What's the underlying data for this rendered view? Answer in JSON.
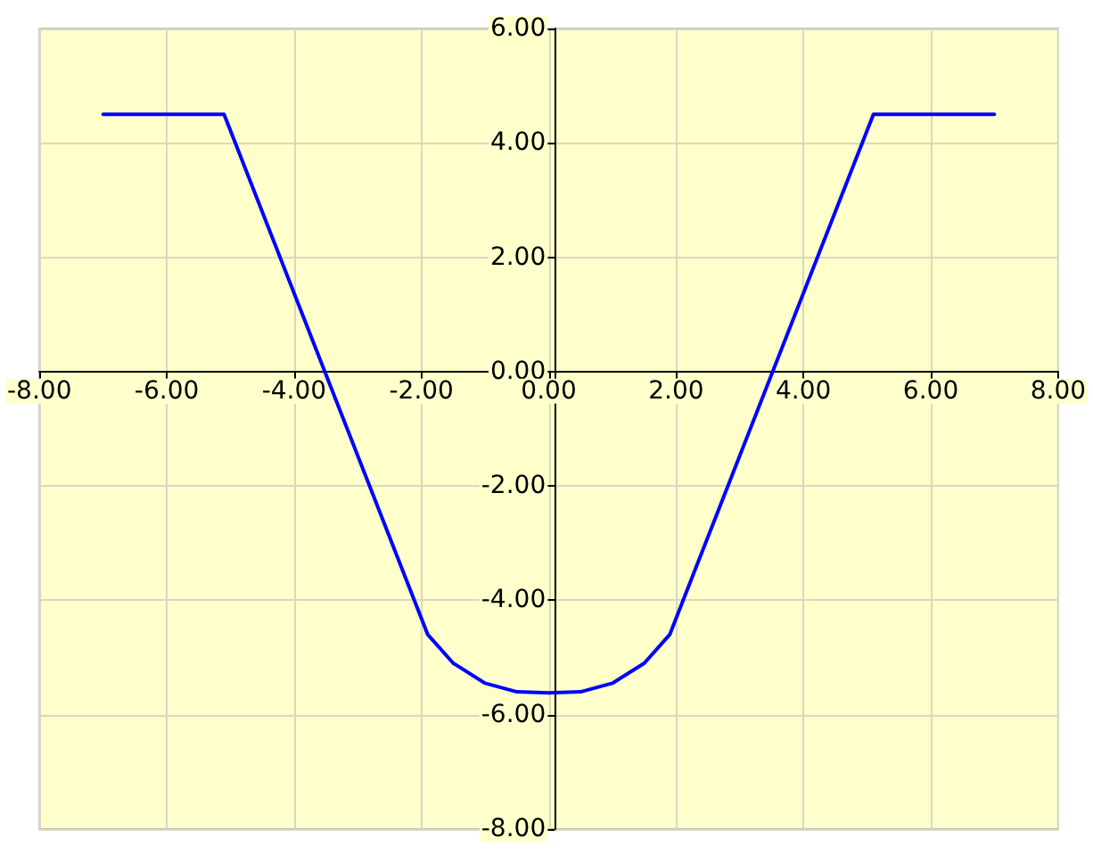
{
  "chart_data": {
    "type": "line",
    "x": [
      -7.0,
      -5.1,
      -1.9,
      -1.5,
      -1.0,
      -0.5,
      0,
      0.5,
      1.0,
      1.5,
      1.9,
      5.1,
      7.0
    ],
    "series": [
      {
        "color": "#0000ff",
        "values": [
          4.5,
          4.5,
          -4.6,
          -5.1,
          -5.45,
          -5.6,
          -5.62,
          -5.6,
          -5.45,
          -5.1,
          -4.6,
          4.5,
          4.5
        ]
      }
    ],
    "xlim": [
      -8,
      8
    ],
    "ylim": [
      -8,
      6
    ],
    "xticks": [
      {
        "value": -8,
        "label": "-8.00"
      },
      {
        "value": -6,
        "label": "-6.00"
      },
      {
        "value": -4,
        "label": "-4.00"
      },
      {
        "value": -2,
        "label": "-2.00"
      },
      {
        "value": 0,
        "label": "0.00"
      },
      {
        "value": 2,
        "label": "2.00"
      },
      {
        "value": 4,
        "label": "4.00"
      },
      {
        "value": 6,
        "label": "6.00"
      },
      {
        "value": 8,
        "label": "8.00"
      }
    ],
    "yticks": [
      {
        "value": -8,
        "label": "-8.00"
      },
      {
        "value": -6,
        "label": "-6.00"
      },
      {
        "value": -4,
        "label": "-4.00"
      },
      {
        "value": -2,
        "label": "-2.00"
      },
      {
        "value": 0,
        "label": "0.00"
      },
      {
        "value": 2,
        "label": "2.00"
      },
      {
        "value": 4,
        "label": "4.00"
      },
      {
        "value": 6,
        "label": "6.00"
      }
    ],
    "grid": true,
    "marker": "none",
    "line_style": "solid"
  }
}
